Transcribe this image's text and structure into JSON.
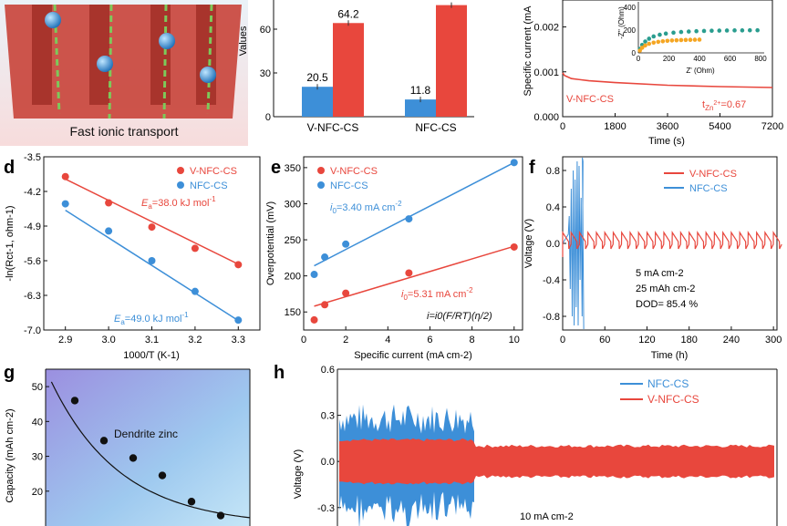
{
  "colors": {
    "red": "#e8473d",
    "blue": "#3d8fd8",
    "teal": "#2a9d8f",
    "orange": "#f5a623",
    "black": "#111111"
  },
  "panel_letters": {
    "d": "d",
    "e": "e",
    "f": "f",
    "g": "g",
    "h": "h"
  },
  "panel_a": {
    "caption": "Fast ionic transport"
  },
  "chart_data": [
    {
      "id": "b",
      "type": "bar",
      "ylabel": "Values",
      "ylim": [
        0,
        80
      ],
      "yticks": [
        "0",
        "30",
        "60"
      ],
      "categories": [
        "V-NFC-CS",
        "NFC-CS"
      ],
      "series": [
        {
          "values": [
            20.5,
            11.8
          ],
          "labels": [
            "20.5",
            "11.8"
          ],
          "color": "#3d8fd8"
        },
        {
          "values": [
            64.2,
            76.5
          ],
          "labels": [
            "64.2",
            ""
          ],
          "color": "#e8473d"
        }
      ]
    },
    {
      "id": "c",
      "type": "line",
      "xlabel": "Time (s)",
      "ylabel": "Specific current (mA",
      "xlim": [
        0,
        7200
      ],
      "ylim": [
        0,
        0.0026
      ],
      "xticks": [
        "0",
        "1800",
        "3600",
        "5400",
        "7200"
      ],
      "yticks": [
        "0.000",
        "0.001",
        "0.002"
      ],
      "series": [
        {
          "name": "V-NFC-CS",
          "x": [
            0,
            60,
            300,
            900,
            1800,
            3600,
            5400,
            7200
          ],
          "y": [
            0.00098,
            0.00092,
            0.00085,
            0.0008,
            0.00076,
            0.0007,
            0.00067,
            0.00065
          ]
        }
      ],
      "annotation": {
        "main": "t",
        "sub": "Zn",
        "sup": "2+",
        "value": "=0.67"
      },
      "inset": {
        "type": "scatter",
        "xlabel": "Z' (Ohm)",
        "ylabel": "-Z'' (Ohm)",
        "xlim": [
          0,
          800
        ],
        "ylim": [
          0,
          450
        ],
        "xticks": [
          "0",
          "200",
          "400",
          "600",
          "800"
        ],
        "yticks": [
          "0",
          "200",
          "400"
        ],
        "series": [
          {
            "color": "#2a9d8f",
            "x": [
              10,
              25,
              45,
              70,
              100,
              140,
              180,
              230,
              280,
              330,
              380,
              430,
              480,
              530,
              580,
              630,
              680,
              730,
              780
            ],
            "y": [
              35,
              70,
              100,
              125,
              145,
              160,
              170,
              178,
              184,
              188,
              191,
              193,
              195,
              196,
              197,
              198,
              198,
              199,
              199
            ]
          },
          {
            "color": "#f5a623",
            "x": [
              10,
              25,
              45,
              70,
              100,
              130,
              160,
              190,
              220,
              250,
              280,
              310,
              340,
              370,
              400
            ],
            "y": [
              20,
              45,
              65,
              80,
              90,
              97,
              102,
              106,
              109,
              111,
              113,
              114,
              115,
              116,
              117
            ]
          }
        ]
      }
    },
    {
      "id": "d",
      "type": "scatter",
      "xlabel": "1000/T (K-1)",
      "ylabel": "-ln(Rct-1, ohm-1)",
      "xlim": [
        2.85,
        3.35
      ],
      "ylim": [
        -7.0,
        -3.5
      ],
      "xticks": [
        "2.9",
        "3.0",
        "3.1",
        "3.2",
        "3.3"
      ],
      "yticks": [
        "-3.5",
        "-4.2",
        "-4.9",
        "-5.6",
        "-6.3",
        "-7.0"
      ],
      "series": [
        {
          "name": "V-NFC-CS",
          "x": [
            2.9,
            3.0,
            3.1,
            3.2,
            3.3
          ],
          "y": [
            -3.9,
            -4.43,
            -4.92,
            -5.35,
            -5.68
          ],
          "fit": [
            [
              2.9,
              -3.95
            ],
            [
              3.3,
              -5.67
            ]
          ]
        },
        {
          "name": "NFC-CS",
          "x": [
            2.9,
            3.0,
            3.1,
            3.2,
            3.3
          ],
          "y": [
            -4.45,
            -5.0,
            -5.6,
            -6.22,
            -6.8
          ],
          "fit": [
            [
              2.9,
              -4.58
            ],
            [
              3.3,
              -6.81
            ]
          ]
        }
      ],
      "annotations": [
        {
          "main": "E",
          "sub": "a",
          "rest": "=38.0 kJ mol",
          "sup": "-1"
        },
        {
          "main": "E",
          "sub": "a",
          "rest": "=49.0 kJ mol",
          "sup": "-1"
        }
      ]
    },
    {
      "id": "e",
      "type": "scatter",
      "xlabel": "Specific current (mA cm-2)",
      "ylabel": "Overpotential (mV)",
      "xlim": [
        0,
        10.4
      ],
      "ylim": [
        125,
        365
      ],
      "xticks": [
        "0",
        "2",
        "4",
        "6",
        "8",
        "10"
      ],
      "yticks": [
        "150",
        "200",
        "250",
        "300",
        "350"
      ],
      "series": [
        {
          "name": "V-NFC-CS",
          "x": [
            0.5,
            1,
            2,
            5,
            10
          ],
          "y": [
            139,
            160,
            176,
            204,
            240
          ],
          "fit": [
            [
              0.5,
              158
            ],
            [
              10,
              241
            ]
          ]
        },
        {
          "name": "NFC-CS",
          "x": [
            0.5,
            1,
            2,
            5,
            10
          ],
          "y": [
            202,
            226,
            244,
            279,
            357
          ],
          "fit": [
            [
              0.5,
              214
            ],
            [
              10,
              357
            ]
          ]
        }
      ],
      "annotations": [
        {
          "main": "i",
          "sub": "0",
          "rest": "=3.40 mA cm",
          "sup": "-2"
        },
        {
          "main": "i",
          "sub": "0",
          "rest": "=5.31 mA cm",
          "sup": "-2"
        },
        {
          "formula": "i=i0(F/RT)(η/2)"
        }
      ]
    },
    {
      "id": "f",
      "type": "line",
      "xlabel": "Time (h)",
      "ylabel": "Voltage (V)",
      "xlim": [
        0,
        305
      ],
      "ylim": [
        -0.95,
        0.95
      ],
      "xticks": [
        "0",
        "60",
        "120",
        "180",
        "240",
        "300"
      ],
      "yticks": [
        "0.8",
        "0.4",
        "0.0",
        "-0.4",
        "-0.8"
      ],
      "series": [
        {
          "name": "V-NFC-CS",
          "behavior": "periodic plating/stripping, about -0.05 to 0.15 V, period ~12 h, 0-305 h"
        },
        {
          "name": "NFC-CS",
          "behavior": "large oscillation reaching +/-0.8 V, short circuit near 30 h"
        }
      ],
      "notes": [
        "5 mA cm-2",
        "25 mAh cm-2",
        "DOD= 85.4 %"
      ]
    },
    {
      "id": "g",
      "type": "scatter",
      "ylabel": "Capacity (mAh cm-2)",
      "ylim": [
        10,
        55
      ],
      "yticks": [
        "50",
        "40",
        "30",
        "20"
      ],
      "x": [
        1,
        2,
        3,
        4,
        5,
        6
      ],
      "y": [
        46,
        34.5,
        29.5,
        24.5,
        17,
        13
      ],
      "region_label": "Dendrite zinc"
    },
    {
      "id": "h",
      "type": "line",
      "ylabel": "Voltage (V)",
      "ylim": [
        -0.42,
        0.6
      ],
      "yticks": [
        "0.6",
        "0.3",
        "0.0",
        "-0.3"
      ],
      "series": [
        {
          "name": "NFC-CS",
          "behavior": "noisy band +/-0.3 V, fails at about one third of the axis"
        },
        {
          "name": "V-NFC-CS",
          "behavior": "stable band about +/-0.1 V across the full axis"
        }
      ],
      "notes": [
        "10 mA cm-2"
      ]
    }
  ]
}
